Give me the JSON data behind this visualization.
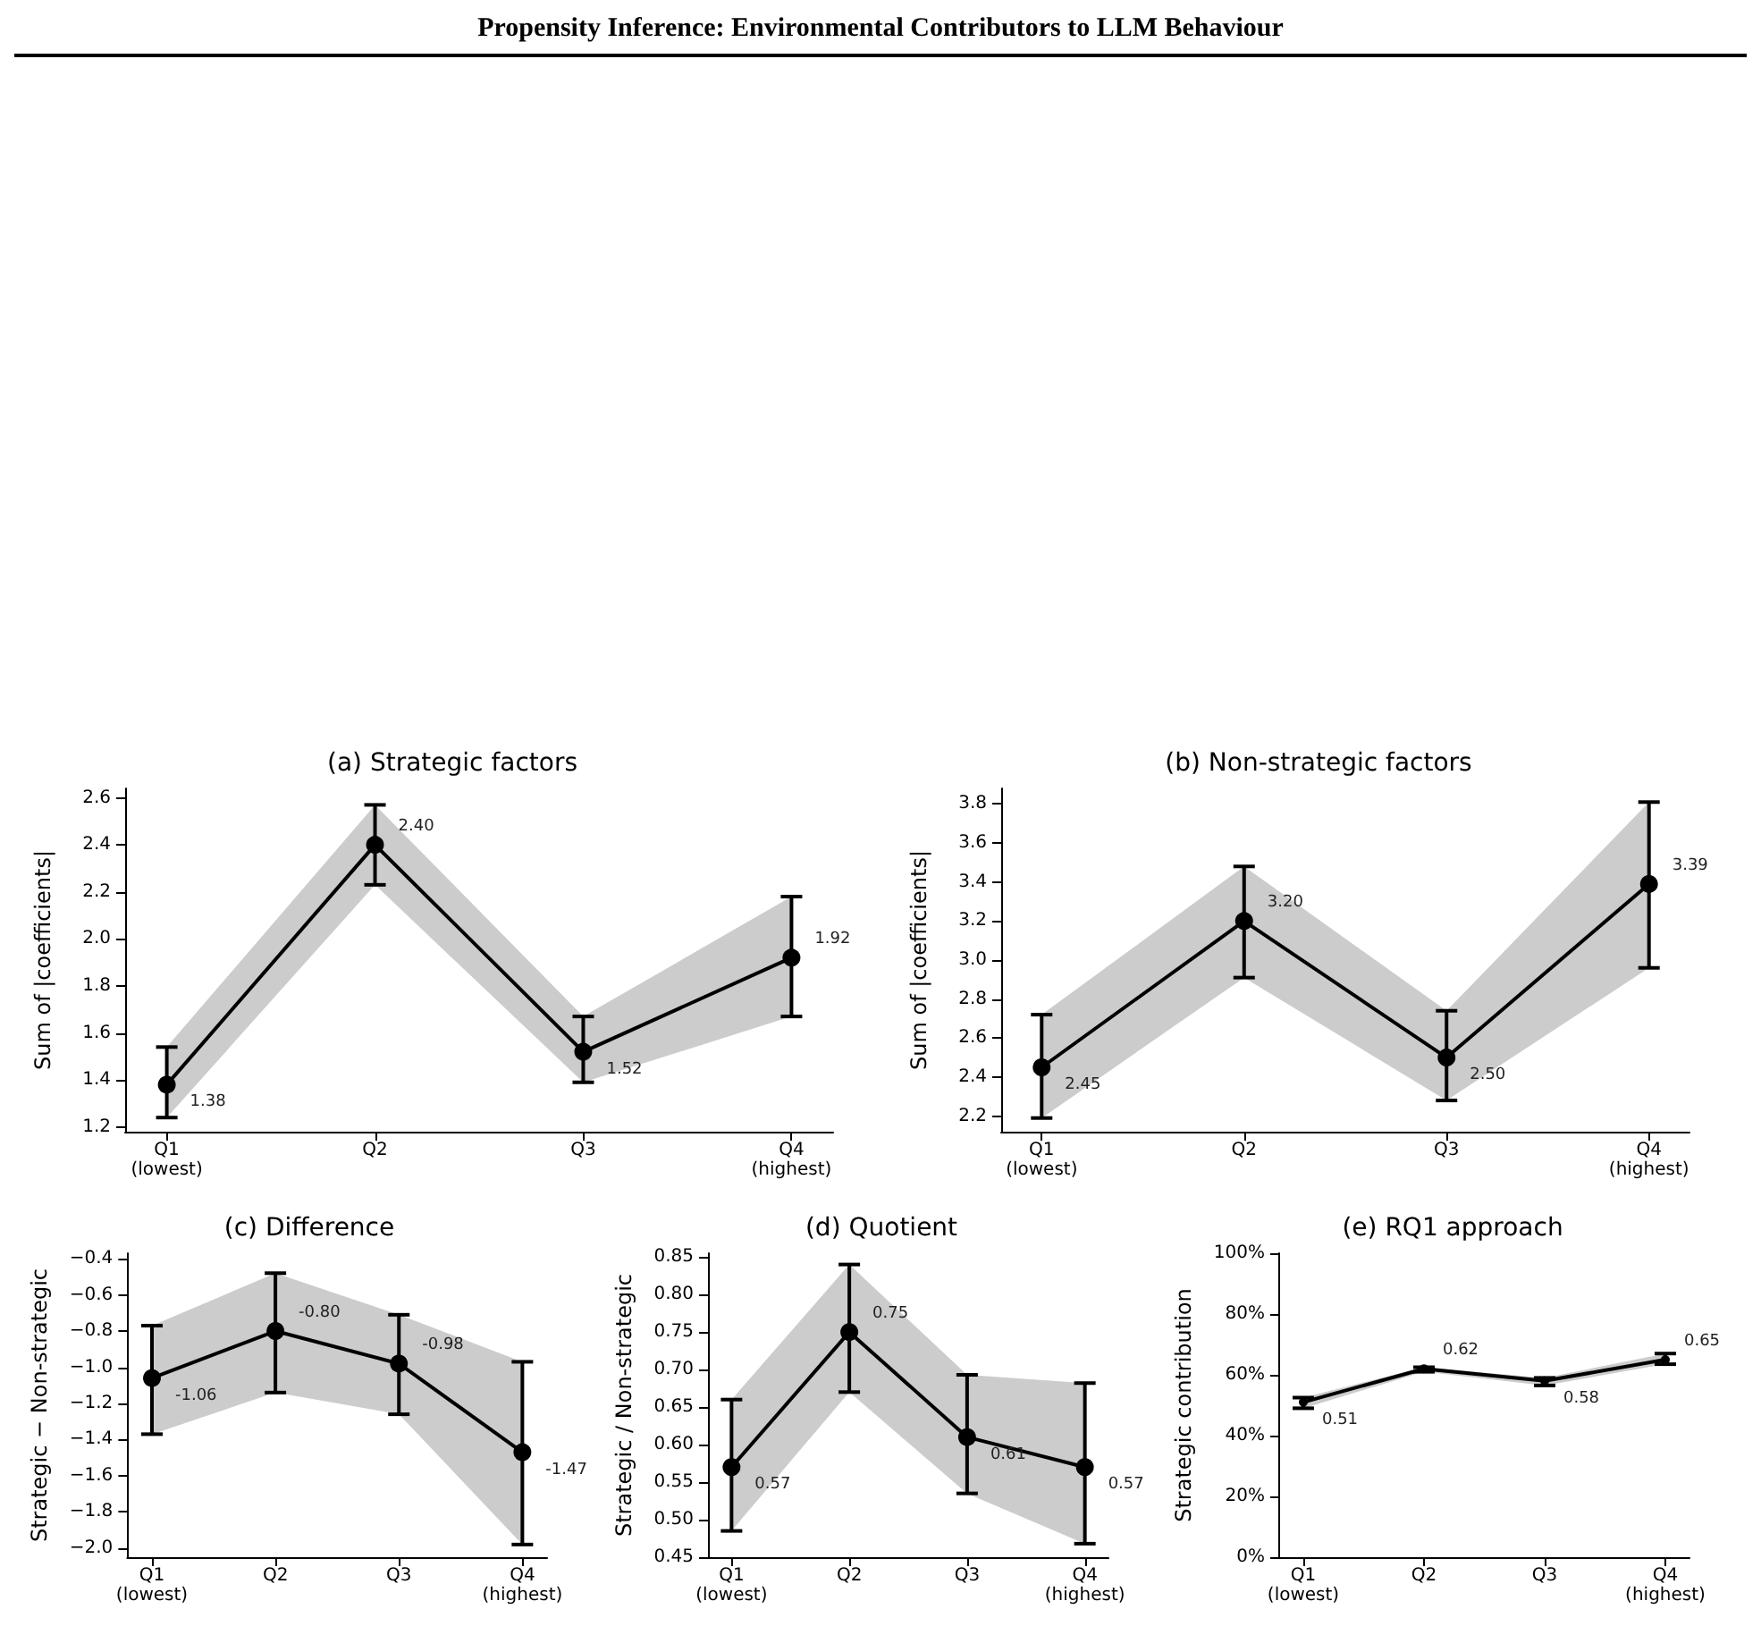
{
  "chart_data": [
    {
      "type": "other",
      "title": "Propensity Inference: Environmental Contributors to LLM Behaviour"
    },
    {
      "type": "line",
      "title": "(a) Strategic factors",
      "ylabel": "Sum of |coefficients|",
      "categories": [
        "Q1\n(lowest)",
        "Q2",
        "Q3",
        "Q4\n(highest)"
      ],
      "marker": "circle",
      "ylim": [
        1.18,
        2.64
      ],
      "yticks": [
        1.2,
        1.4,
        1.6,
        1.8,
        {
          "value": 2.0,
          "label": "2.0"
        },
        2.2,
        2.4,
        2.6
      ],
      "series": [
        {
          "color": "#000000",
          "values": [
            1.38,
            2.4,
            1.52,
            1.92
          ],
          "errors": [
            [
              1.24,
              1.54
            ],
            [
              2.23,
              2.57
            ],
            [
              1.39,
              1.67
            ],
            [
              1.67,
              2.18
            ]
          ],
          "lower": [
            1.24,
            2.23,
            1.39,
            1.67
          ],
          "upper": [
            1.54,
            2.57,
            1.67,
            2.18
          ],
          "value_labels": [
            "1.38",
            "2.40",
            "1.52",
            "1.92"
          ]
        }
      ]
    },
    {
      "type": "line",
      "title": "(b) Non-strategic factors",
      "ylabel": "Sum of |coefficients|",
      "categories": [
        "Q1\n(lowest)",
        "Q2",
        "Q3",
        "Q4\n(highest)"
      ],
      "marker": "circle",
      "ylim": [
        2.12,
        3.88
      ],
      "yticks": [
        2.2,
        2.4,
        2.6,
        2.8,
        {
          "value": 3.0,
          "label": "3.0"
        },
        3.2,
        3.4,
        3.6,
        3.8
      ],
      "series": [
        {
          "color": "#000000",
          "values": [
            2.45,
            3.2,
            2.5,
            3.39
          ],
          "errors": [
            [
              2.19,
              2.72
            ],
            [
              2.91,
              3.48
            ],
            [
              2.28,
              2.74
            ],
            [
              2.96,
              3.81
            ]
          ],
          "lower": [
            2.19,
            2.91,
            2.28,
            2.96
          ],
          "upper": [
            2.72,
            3.48,
            2.74,
            3.81
          ],
          "value_labels": [
            "2.45",
            "3.20",
            "2.50",
            "3.39"
          ]
        }
      ]
    },
    {
      "type": "line",
      "title": "(c) Difference",
      "ylabel": "Strategic − Non-strategic",
      "categories": [
        "Q1\n(lowest)",
        "Q2",
        "Q3",
        "Q4\n(highest)"
      ],
      "marker": "circle",
      "ylim": [
        -2.05,
        -0.37
      ],
      "yticks": [
        {
          "value": -2.0,
          "label": "−2.0"
        },
        {
          "value": -1.8,
          "label": "−1.8"
        },
        {
          "value": -1.6,
          "label": "−1.6"
        },
        {
          "value": -1.4,
          "label": "−1.4"
        },
        {
          "value": -1.2,
          "label": "−1.2"
        },
        {
          "value": -1.0,
          "label": "−1.0"
        },
        {
          "value": -0.8,
          "label": "−0.8"
        },
        {
          "value": -0.6,
          "label": "−0.6"
        },
        {
          "value": -0.4,
          "label": "−0.4"
        }
      ],
      "series": [
        {
          "color": "#000000",
          "values": [
            -1.06,
            -0.8,
            -0.98,
            -1.47
          ],
          "errors": [
            [
              -1.37,
              -0.77
            ],
            [
              -1.14,
              -0.48
            ],
            [
              -1.26,
              -0.71
            ],
            [
              -1.98,
              -0.97
            ]
          ],
          "lower": [
            -1.37,
            -1.14,
            -1.26,
            -1.98
          ],
          "upper": [
            -0.77,
            -0.48,
            -0.71,
            -0.97
          ],
          "value_labels": [
            "-1.06",
            "-0.80",
            "-0.98",
            "-1.47"
          ]
        }
      ]
    },
    {
      "type": "line",
      "title": "(d) Quotient",
      "ylabel": "Strategic / Non-strategic",
      "categories": [
        "Q1\n(lowest)",
        "Q2",
        "Q3",
        "Q4\n(highest)"
      ],
      "marker": "circle",
      "ylim": [
        0.45,
        0.855
      ],
      "yticks": [
        {
          "value": 0.45,
          "label": "0.45"
        },
        {
          "value": 0.5,
          "label": "0.50"
        },
        {
          "value": 0.55,
          "label": "0.55"
        },
        {
          "value": 0.6,
          "label": "0.60"
        },
        {
          "value": 0.65,
          "label": "0.65"
        },
        {
          "value": 0.7,
          "label": "0.70"
        },
        {
          "value": 0.75,
          "label": "0.75"
        },
        {
          "value": 0.8,
          "label": "0.80"
        },
        {
          "value": 0.85,
          "label": "0.85"
        }
      ],
      "series": [
        {
          "color": "#000000",
          "values": [
            0.57,
            0.75,
            0.61,
            0.57
          ],
          "errors": [
            [
              0.485,
              0.66
            ],
            [
              0.67,
              0.84
            ],
            [
              0.535,
              0.693
            ],
            [
              0.468,
              0.682
            ]
          ],
          "lower": [
            0.485,
            0.67,
            0.535,
            0.468
          ],
          "upper": [
            0.66,
            0.84,
            0.693,
            0.682
          ],
          "value_labels": [
            "0.57",
            "0.75",
            "0.61",
            "0.57"
          ]
        }
      ]
    },
    {
      "type": "line",
      "title": "(e) RQ1 approach",
      "ylabel": "Strategic contribution",
      "categories": [
        "Q1\n(lowest)",
        "Q2",
        "Q3",
        "Q4\n(highest)"
      ],
      "marker": "circle",
      "ylim": [
        0,
        1
      ],
      "yticks": [
        {
          "value": 0,
          "label": "0%"
        },
        {
          "value": 0.2,
          "label": "20%"
        },
        {
          "value": 0.4,
          "label": "40%"
        },
        {
          "value": 0.6,
          "label": "60%"
        },
        {
          "value": 0.8,
          "label": "80%"
        },
        {
          "value": 1,
          "label": "100%"
        }
      ],
      "series": [
        {
          "color": "#000000",
          "values": [
            0.51,
            0.62,
            0.58,
            0.65
          ],
          "errors": [
            [
              0.49,
              0.525
            ],
            [
              0.61,
              0.625
            ],
            [
              0.565,
              0.59
            ],
            [
              0.635,
              0.67
            ]
          ],
          "lower": [
            0.49,
            0.61,
            0.565,
            0.635
          ],
          "upper": [
            0.525,
            0.625,
            0.59,
            0.67
          ],
          "value_labels": [
            "0.51",
            "0.62",
            "0.58",
            "0.65"
          ]
        }
      ]
    }
  ]
}
